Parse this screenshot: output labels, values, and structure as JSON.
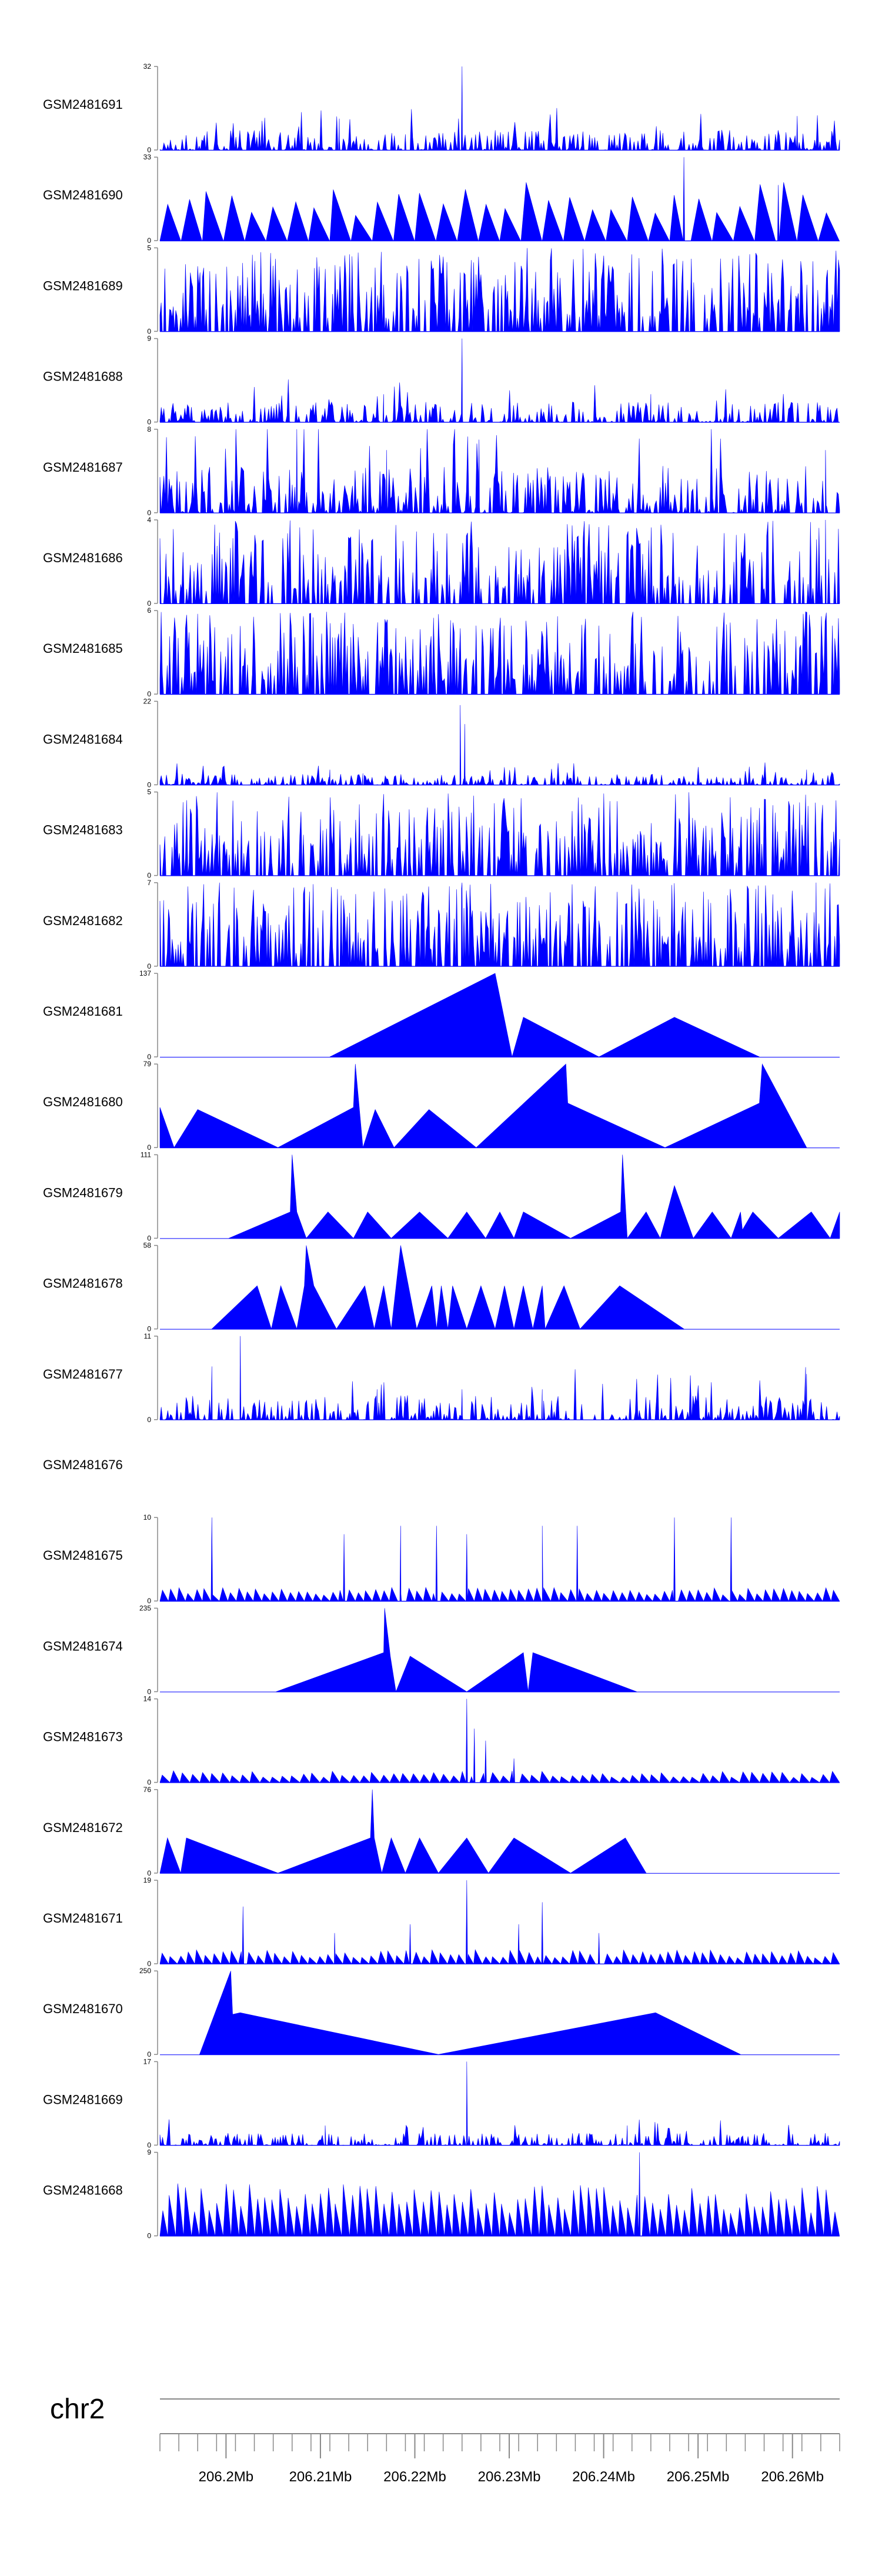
{
  "chart_data": {
    "type": "area",
    "color": "#0000ff",
    "axis_color": "#888888",
    "chromosome": "chr2",
    "xlim": [
      206.193,
      206.265
    ],
    "x_ticks": [
      206.2,
      206.21,
      206.22,
      206.23,
      206.24,
      206.25,
      206.26
    ],
    "x_tick_labels": [
      "206.2Mb",
      "206.21Mb",
      "206.22Mb",
      "206.23Mb",
      "206.24Mb",
      "206.25Mb",
      "206.26Mb"
    ],
    "tracks": [
      {
        "name": "GSM2481691",
        "ymax": 32,
        "pattern": "dense",
        "seed": 91,
        "peaks": [
          [
            206.225,
            32
          ],
          [
            206.212,
            12
          ],
          [
            206.2605,
            13
          ],
          [
            206.219,
            6
          ]
        ]
      },
      {
        "name": "GSM2481690",
        "ymax": 33,
        "pattern": "tri",
        "seed": 90,
        "n": 32,
        "base": 0.5,
        "peaks": [
          [
            206.2485,
            33
          ],
          [
            206.2585,
            22
          ]
        ]
      },
      {
        "name": "GSM2481689",
        "ymax": 5,
        "pattern": "spiky",
        "seed": 89,
        "density": 0.9
      },
      {
        "name": "GSM2481688",
        "ymax": 9,
        "pattern": "dense",
        "seed": 88,
        "peaks": [
          [
            206.225,
            9
          ],
          [
            206.2167,
            3
          ],
          [
            206.245,
            3
          ]
        ]
      },
      {
        "name": "GSM2481687",
        "ymax": 8,
        "pattern": "dense",
        "seed": 87,
        "lvl": 0.35,
        "peaks": [
          [
            206.2075,
            8
          ],
          [
            206.2268,
            7
          ],
          [
            206.217,
            6
          ],
          [
            206.2635,
            6
          ]
        ]
      },
      {
        "name": "GSM2481686",
        "ymax": 4,
        "pattern": "spiky",
        "seed": 86,
        "density": 0.75,
        "peaks": [
          [
            206.2635,
            4
          ]
        ]
      },
      {
        "name": "GSM2481685",
        "ymax": 6,
        "pattern": "spiky",
        "seed": 85,
        "density": 0.85
      },
      {
        "name": "GSM2481684",
        "ymax": 22,
        "pattern": "dense",
        "seed": 84,
        "lvl": 0.08,
        "peaks": [
          [
            206.2248,
            21
          ],
          [
            206.2253,
            16
          ],
          [
            206.2615,
            4
          ],
          [
            206.211,
            4
          ],
          [
            206.2145,
            3
          ]
        ]
      },
      {
        "name": "GSM2481683",
        "ymax": 5,
        "pattern": "spiky",
        "seed": 83,
        "density": 0.8
      },
      {
        "name": "GSM2481682",
        "ymax": 7,
        "pattern": "spiky",
        "seed": 82,
        "density": 0.8,
        "peaks": [
          [
            206.2625,
            7
          ],
          [
            206.225,
            7
          ]
        ]
      },
      {
        "name": "GSM2481681",
        "ymax": 137,
        "pattern": "poly",
        "points": [
          [
            206.211,
            0
          ],
          [
            206.2285,
            137
          ],
          [
            206.2303,
            0
          ],
          [
            206.2315,
            65
          ],
          [
            206.2395,
            0
          ],
          [
            206.2475,
            65
          ],
          [
            206.2565,
            0
          ]
        ]
      },
      {
        "name": "GSM2481680",
        "ymax": 79,
        "pattern": "poly",
        "points": [
          [
            206.193,
            38
          ],
          [
            206.1945,
            0
          ],
          [
            206.197,
            36
          ],
          [
            206.2055,
            0
          ],
          [
            206.2135,
            38
          ],
          [
            206.2137,
            79
          ],
          [
            206.2145,
            0
          ],
          [
            206.2158,
            36
          ],
          [
            206.2178,
            0
          ],
          [
            206.2215,
            36
          ],
          [
            206.2265,
            0
          ],
          [
            206.236,
            79
          ],
          [
            206.2362,
            42
          ],
          [
            206.2465,
            0
          ],
          [
            206.2565,
            42
          ],
          [
            206.2568,
            79
          ],
          [
            206.2615,
            0
          ]
        ]
      },
      {
        "name": "GSM2481679",
        "ymax": 111,
        "pattern": "poly",
        "points": [
          [
            206.2003,
            0
          ],
          [
            206.2068,
            35
          ],
          [
            206.207,
            111
          ],
          [
            206.2075,
            35
          ],
          [
            206.2085,
            0
          ],
          [
            206.2108,
            35
          ],
          [
            206.2135,
            0
          ],
          [
            206.215,
            35
          ],
          [
            206.2175,
            0
          ],
          [
            206.2205,
            35
          ],
          [
            206.2235,
            0
          ],
          [
            206.2255,
            35
          ],
          [
            206.2275,
            0
          ],
          [
            206.229,
            35
          ],
          [
            206.2305,
            0
          ],
          [
            206.2315,
            35
          ],
          [
            206.2365,
            0
          ],
          [
            206.2418,
            35
          ],
          [
            206.242,
            111
          ],
          [
            206.2425,
            0
          ],
          [
            206.2445,
            35
          ],
          [
            206.246,
            0
          ],
          [
            206.2475,
            70
          ],
          [
            206.2495,
            0
          ],
          [
            206.2515,
            35
          ],
          [
            206.2535,
            0
          ],
          [
            206.2545,
            35
          ],
          [
            206.2547,
            11
          ],
          [
            206.2558,
            35
          ],
          [
            206.2585,
            0
          ],
          [
            206.262,
            35
          ],
          [
            206.264,
            0
          ],
          [
            206.265,
            35
          ],
          [
            206.265,
            0
          ]
        ]
      },
      {
        "name": "GSM2481678",
        "ymax": 58,
        "pattern": "poly",
        "points": [
          [
            206.1985,
            0
          ],
          [
            206.2033,
            30
          ],
          [
            206.2048,
            0
          ],
          [
            206.2058,
            30
          ],
          [
            206.2075,
            0
          ],
          [
            206.2083,
            30
          ],
          [
            206.2085,
            58
          ],
          [
            206.2093,
            30
          ],
          [
            206.2117,
            0
          ],
          [
            206.2147,
            30
          ],
          [
            206.2157,
            0
          ],
          [
            206.2167,
            30
          ],
          [
            206.2175,
            0
          ],
          [
            206.2185,
            58
          ],
          [
            206.2202,
            0
          ],
          [
            206.2218,
            30
          ],
          [
            206.2223,
            0
          ],
          [
            206.2228,
            30
          ],
          [
            206.2235,
            0
          ],
          [
            206.224,
            30
          ],
          [
            206.2255,
            0
          ],
          [
            206.227,
            30
          ],
          [
            206.2285,
            0
          ],
          [
            206.2295,
            30
          ],
          [
            206.2305,
            0
          ],
          [
            206.2315,
            30
          ],
          [
            206.2325,
            0
          ],
          [
            206.2335,
            30
          ],
          [
            206.2338,
            0
          ],
          [
            206.2358,
            30
          ],
          [
            206.2375,
            0
          ],
          [
            206.2417,
            30
          ],
          [
            206.2485,
            0
          ]
        ]
      },
      {
        "name": "GSM2481677",
        "ymax": 11,
        "pattern": "dense",
        "seed": 77,
        "lvl": 0.18,
        "peaks": [
          [
            206.2015,
            11
          ],
          [
            206.1985,
            7
          ],
          [
            206.216,
            4
          ],
          [
            206.225,
            4
          ],
          [
            206.2615,
            6
          ],
          [
            206.2335,
            4
          ]
        ]
      },
      {
        "name": "GSM2481676",
        "ymax": null,
        "pattern": "empty"
      },
      {
        "name": "GSM2481675",
        "ymax": 10,
        "pattern": "tri",
        "seed": 75,
        "n": 80,
        "base": 0.12,
        "peaks": [
          [
            206.1985,
            10
          ],
          [
            206.2125,
            8
          ],
          [
            206.2185,
            9
          ],
          [
            206.2223,
            9
          ],
          [
            206.2255,
            8
          ],
          [
            206.2335,
            9
          ],
          [
            206.2372,
            9
          ],
          [
            206.2475,
            10
          ],
          [
            206.2535,
            10
          ]
        ]
      },
      {
        "name": "GSM2481674",
        "ymax": 235,
        "pattern": "poly",
        "points": [
          [
            206.2053,
            0
          ],
          [
            206.2167,
            110
          ],
          [
            206.2168,
            235
          ],
          [
            206.2174,
            100
          ],
          [
            206.218,
            0
          ],
          [
            206.2195,
            100
          ],
          [
            206.2255,
            0
          ],
          [
            206.2315,
            110
          ],
          [
            206.232,
            0
          ],
          [
            206.2325,
            110
          ],
          [
            206.2435,
            0
          ]
        ]
      },
      {
        "name": "GSM2481673",
        "ymax": 14,
        "pattern": "tri",
        "seed": 73,
        "n": 68,
        "base": 0.1,
        "peaks": [
          [
            206.2255,
            14
          ],
          [
            206.2263,
            9
          ],
          [
            206.2275,
            7
          ],
          [
            206.2305,
            4
          ]
        ]
      },
      {
        "name": "GSM2481672",
        "ymax": 76,
        "pattern": "poly",
        "points": [
          [
            206.193,
            0
          ],
          [
            206.1938,
            32
          ],
          [
            206.1952,
            0
          ],
          [
            206.1958,
            32
          ],
          [
            206.2055,
            0
          ],
          [
            206.2153,
            32
          ],
          [
            206.2155,
            76
          ],
          [
            206.2157,
            32
          ],
          [
            206.2165,
            0
          ],
          [
            206.2175,
            32
          ],
          [
            206.219,
            0
          ],
          [
            206.2205,
            32
          ],
          [
            206.2225,
            0
          ],
          [
            206.2255,
            32
          ],
          [
            206.2278,
            0
          ],
          [
            206.2305,
            32
          ],
          [
            206.2365,
            0
          ],
          [
            206.2423,
            32
          ],
          [
            206.2445,
            0
          ]
        ]
      },
      {
        "name": "GSM2481671",
        "ymax": 19,
        "pattern": "tri",
        "seed": 71,
        "n": 78,
        "base": 0.12,
        "peaks": [
          [
            206.2255,
            19
          ],
          [
            206.2018,
            13
          ],
          [
            206.2335,
            14
          ],
          [
            206.2115,
            7
          ],
          [
            206.2195,
            9
          ],
          [
            206.231,
            9
          ],
          [
            206.2395,
            7
          ]
        ]
      },
      {
        "name": "GSM2481670",
        "ymax": 250,
        "pattern": "poly",
        "points": [
          [
            206.1972,
            0
          ],
          [
            206.2005,
            250
          ],
          [
            206.2007,
            120
          ],
          [
            206.2015,
            125
          ],
          [
            206.2225,
            0
          ],
          [
            206.2455,
            125
          ],
          [
            206.2545,
            0
          ]
        ]
      },
      {
        "name": "GSM2481669",
        "ymax": 17,
        "pattern": "dense",
        "seed": 69,
        "lvl": 0.09,
        "peaks": [
          [
            206.2255,
            17
          ],
          [
            206.2105,
            4
          ],
          [
            206.2425,
            4
          ]
        ]
      },
      {
        "name": "GSM2481668",
        "ymax": 9,
        "pattern": "tri",
        "seed": 68,
        "n": 86,
        "base": 0.45,
        "peaks": [
          [
            206.2438,
            9
          ]
        ]
      }
    ]
  }
}
